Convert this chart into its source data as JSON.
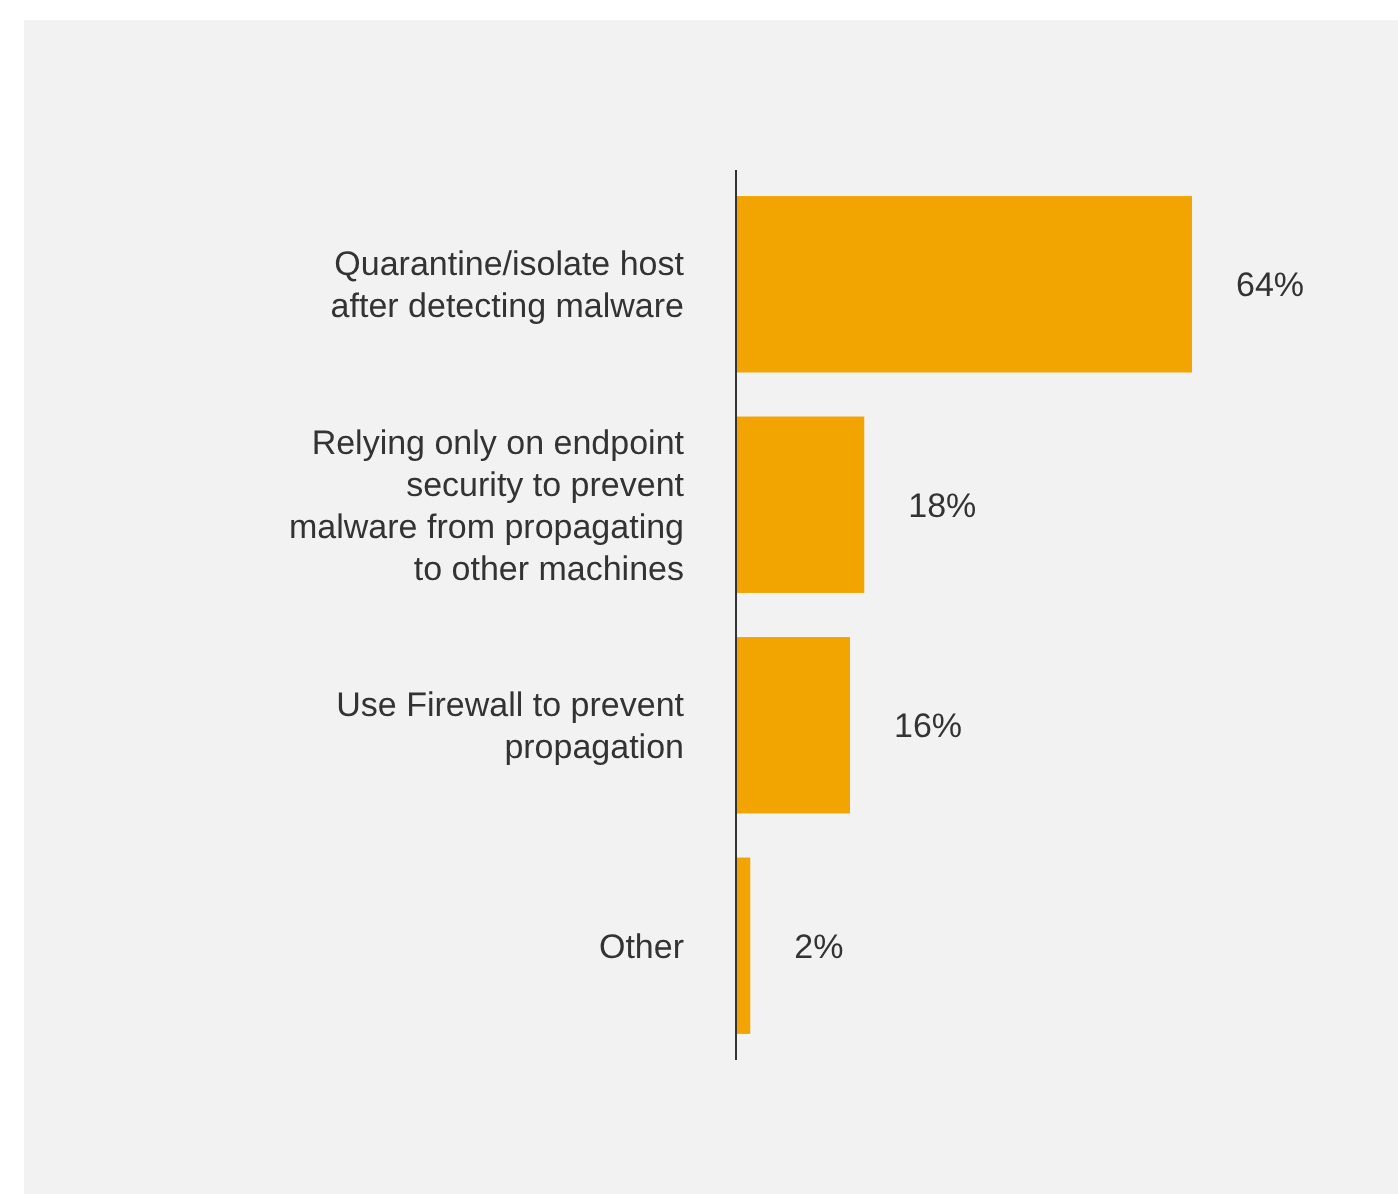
{
  "chart_data": {
    "type": "bar",
    "orientation": "horizontal",
    "categories": [
      "Quarantine/isolate host after detecting malware",
      "Relying only on endpoint security to prevent malware from propagating to other machines",
      "Use Firewall to prevent propagation",
      "Other"
    ],
    "values": [
      64,
      18,
      16,
      2
    ],
    "value_labels": [
      "64%",
      "18%",
      "16%",
      "2%"
    ],
    "color": "#f2a500"
  }
}
